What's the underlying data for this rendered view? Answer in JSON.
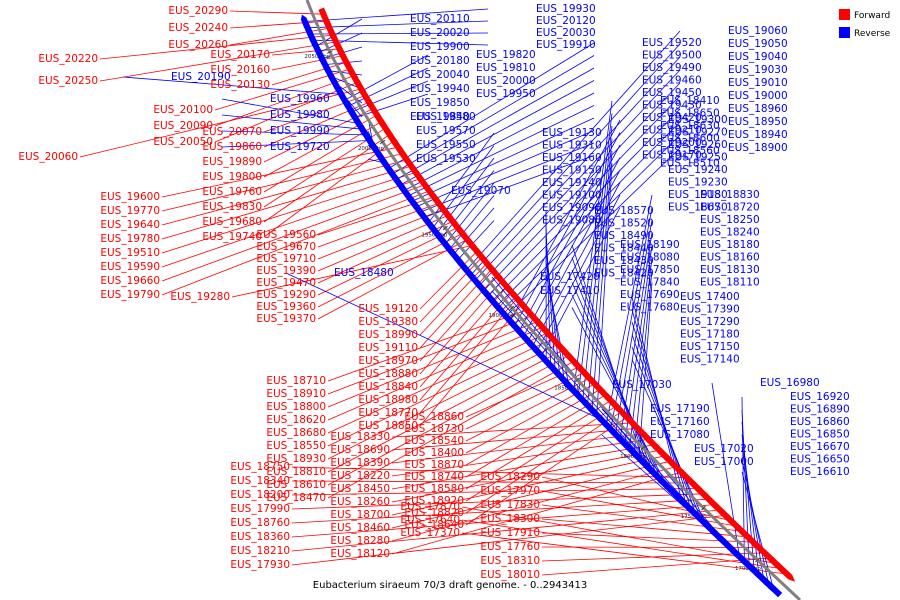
{
  "caption": "Eubacterium siraeum 70/3 draft genome. - 0..2943413",
  "legend": {
    "forward_label": "Forward",
    "reverse_label": "Reverse",
    "forward_color": "#ff0000",
    "reverse_color": "#0000ff"
  },
  "ticks": [
    "2050 kbp",
    "2000 kbp",
    "1950 kbp",
    "1900 kbp",
    "1850 kbp",
    "1800 kbp",
    "1750 kbp",
    "1700 kbp"
  ],
  "forward_genes": [
    "EUS_20290",
    "EUS_20240",
    "EUS_20260",
    "EUS_20220",
    "EUS_20250",
    "EUS_20170",
    "EUS_20160",
    "EUS_20130",
    "EUS_20100",
    "EUS_20090",
    "EUS_20050",
    "EUS_20060",
    "EUS_20070",
    "EUS_19860",
    "EUS_19890",
    "EUS_19800",
    "EUS_19760",
    "EUS_19830",
    "EUS_19680",
    "EUS_19740",
    "EUS_19600",
    "EUS_19770",
    "EUS_19640",
    "EUS_19780",
    "EUS_19510",
    "EUS_19590",
    "EUS_19660",
    "EUS_19790",
    "EUS_19560",
    "EUS_19670",
    "EUS_19710",
    "EUS_19390",
    "EUS_19470",
    "EUS_19290",
    "EUS_19360",
    "EUS_19370",
    "EUS_19280",
    "EUS_19120",
    "EUS_19380",
    "EUS_18990",
    "EUS_19110",
    "EUS_18970",
    "EUS_18880",
    "EUS_18840",
    "EUS_18980",
    "EUS_18770",
    "EUS_18850",
    "EUS_18710",
    "EUS_18910",
    "EUS_18800",
    "EUS_18620",
    "EUS_18680",
    "EUS_18550",
    "EUS_18930",
    "EUS_18810",
    "EUS_18610",
    "EUS_18470",
    "EUS_18860",
    "EUS_18730",
    "EUS_18540",
    "EUS_18400",
    "EUS_18870",
    "EUS_18740",
    "EUS_18580",
    "EUS_18920",
    "EUS_18820",
    "EUS_18640",
    "EUS_18330",
    "EUS_18690",
    "EUS_18390",
    "EUS_18220",
    "EUS_18450",
    "EUS_18260",
    "EUS_18700",
    "EUS_18460",
    "EUS_18280",
    "EUS_18120",
    "EUS_18750",
    "EUS_18340",
    "EUS_18200",
    "EUS_17990",
    "EUS_18760",
    "EUS_18360",
    "EUS_18210",
    "EUS_17930",
    "EUS_18290",
    "EUS_17970",
    "EUS_17830",
    "EUS_18300",
    "EUS_17910",
    "EUS_17760",
    "EUS_18310",
    "EUS_18010",
    "EUS_17870",
    "EUS_17640",
    "EUS_17370"
  ],
  "reverse_genes": [
    "EUS_19930",
    "EUS_20120",
    "EUS_20030",
    "EUS_19910",
    "EUS_20110",
    "EUS_20020",
    "EUS_19900",
    "EUS_20180",
    "EUS_20040",
    "EUS_19940",
    "EUS_19850",
    "EUS_19840",
    "EUS_20190",
    "EUS_19820",
    "EUS_19810",
    "EUS_20000",
    "EUS_19950",
    "EUS_19960",
    "EUS_19980",
    "EUS_19990",
    "EUS_19720",
    "EUS_19580",
    "EUS_19570",
    "EUS_19550",
    "EUS_19530",
    "EUS_19520",
    "EUS_19500",
    "EUS_19490",
    "EUS_19460",
    "EUS_19450",
    "EUS_19430",
    "EUS_19420",
    "EUS_19210",
    "EUS_19200",
    "EUS_19170",
    "EUS_19130",
    "EUS_19310",
    "EUS_19160",
    "EUS_19150",
    "EUS_19140",
    "EUS_19100",
    "EUS_19090",
    "EUS_19080",
    "EUS_19070",
    "EUS_19060",
    "EUS_19050",
    "EUS_19040",
    "EUS_19030",
    "EUS_19010",
    "EUS_19000",
    "EUS_18960",
    "EUS_18950",
    "EUS_18940",
    "EUS_18900",
    "EUS_19300",
    "EUS_19270",
    "EUS_19260",
    "EUS_19250",
    "EUS_19240",
    "EUS_19230",
    "EUS_19180",
    "EUS_18670",
    "EUS_18570",
    "EUS_18520",
    "EUS_18490",
    "EUS_18440",
    "EUS_18430",
    "EUS_18420",
    "EUS_18410",
    "EUS_18650",
    "EUS_18630",
    "EUS_18600",
    "EUS_18560",
    "EUS_18510",
    "EUS_18480",
    "EUS_18830",
    "EUS_18720",
    "EUS_18250",
    "EUS_18240",
    "EUS_18180",
    "EUS_18160",
    "EUS_18130",
    "EUS_18110",
    "EUS_18190",
    "EUS_18080",
    "EUS_17850",
    "EUS_17840",
    "EUS_17690",
    "EUS_17680",
    "EUS_17420",
    "EUS_17410",
    "EUS_17400",
    "EUS_17390",
    "EUS_17290",
    "EUS_17180",
    "EUS_17150",
    "EUS_17140",
    "EUS_17030",
    "EUS_17190",
    "EUS_17160",
    "EUS_17080",
    "EUS_17020",
    "EUS_17000",
    "EUS_16980",
    "EUS_16920",
    "EUS_16890",
    "EUS_16860",
    "EUS_16850",
    "EUS_16670",
    "EUS_16650",
    "EUS_16610"
  ]
}
